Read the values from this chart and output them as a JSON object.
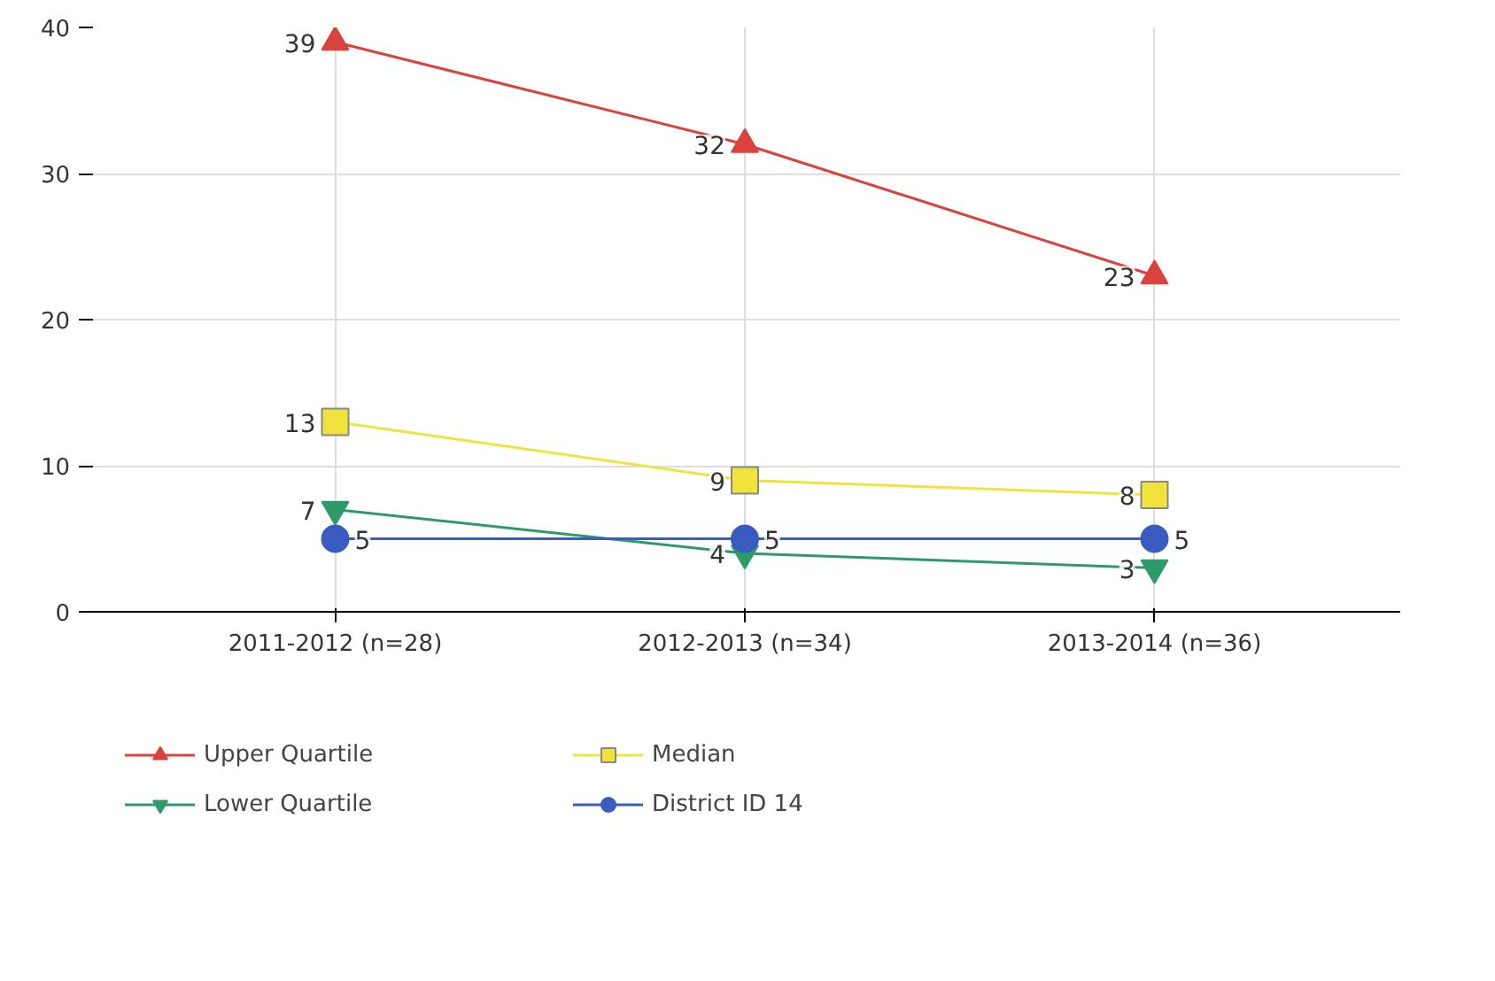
{
  "chart_data": {
    "type": "line",
    "categories": [
      "2011-2012 (n=28)",
      "2012-2013 (n=34)",
      "2013-2014 (n=36)"
    ],
    "series": [
      {
        "name": "Upper Quartile",
        "color": "#d9433b",
        "marker": "triangle",
        "values": [
          39,
          32,
          23
        ]
      },
      {
        "name": "Median",
        "color": "#f2e23c",
        "marker": "square",
        "values": [
          13,
          9,
          8
        ]
      },
      {
        "name": "Lower Quartile",
        "color": "#2e9a6a",
        "marker": "triangle",
        "values": [
          7,
          4,
          3
        ]
      },
      {
        "name": "District ID 14",
        "color": "#3a5cc0",
        "marker": "circle",
        "values": [
          5,
          5,
          5
        ]
      }
    ],
    "ylim": [
      0,
      40
    ],
    "yticks": [
      0,
      10,
      20,
      30,
      40
    ],
    "grid": true,
    "legend": "bottom",
    "data_labels": true
  }
}
